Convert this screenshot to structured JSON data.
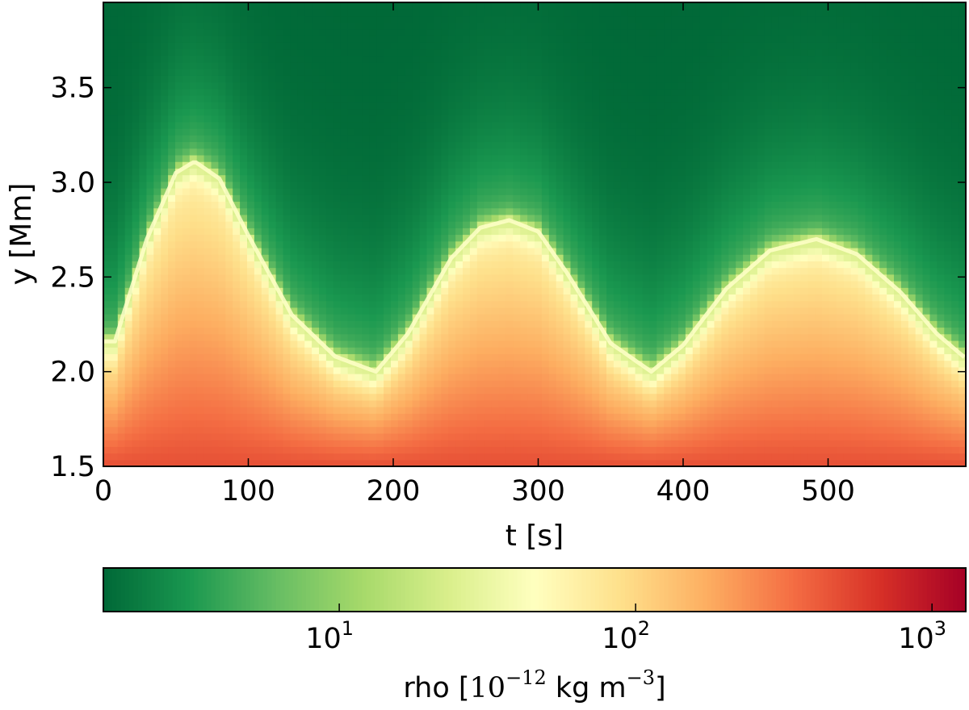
{
  "chart_data": {
    "type": "heatmap",
    "title": "",
    "xlabel": "t [s]",
    "ylabel": "y [Mm]",
    "xlim": [
      0,
      595
    ],
    "ylim": [
      1.5,
      3.95
    ],
    "x_ticks": [
      0,
      100,
      200,
      300,
      400,
      500
    ],
    "x_tick_labels": [
      "0",
      "100",
      "200",
      "300",
      "400",
      "500"
    ],
    "y_ticks": [
      1.5,
      2.0,
      2.5,
      3.0,
      3.5
    ],
    "y_tick_labels": [
      "1.5",
      "2.0",
      "2.5",
      "3.0",
      "3.5"
    ],
    "colorscale": "RdYlGn_r",
    "color_scale_type": "log",
    "color_range": [
      1.6,
      1300
    ],
    "colorbar": {
      "orientation": "horizontal",
      "position": "bottom",
      "ticks": [
        10,
        100,
        1000
      ],
      "tick_labels": [
        {
          "base": "10",
          "exp": "1"
        },
        {
          "base": "10",
          "exp": "2"
        },
        {
          "base": "10",
          "exp": "3"
        }
      ],
      "label": {
        "prefix": "rho [",
        "math_base": "10",
        "math_exp": "−12",
        "unit_kg": "kg m",
        "unit_exp": "−3",
        "suffix": "]"
      }
    },
    "interface_height_series": {
      "name": "",
      "x": [
        0,
        8,
        30,
        50,
        63,
        80,
        100,
        130,
        160,
        188,
        210,
        240,
        260,
        280,
        300,
        320,
        350,
        378,
        400,
        430,
        460,
        492,
        520,
        550,
        575,
        595
      ],
      "y": [
        2.16,
        2.16,
        2.7,
        3.05,
        3.11,
        3.02,
        2.72,
        2.3,
        2.08,
        2.0,
        2.2,
        2.6,
        2.76,
        2.8,
        2.74,
        2.52,
        2.15,
        2.0,
        2.14,
        2.44,
        2.64,
        2.7,
        2.62,
        2.42,
        2.2,
        2.07
      ]
    }
  }
}
